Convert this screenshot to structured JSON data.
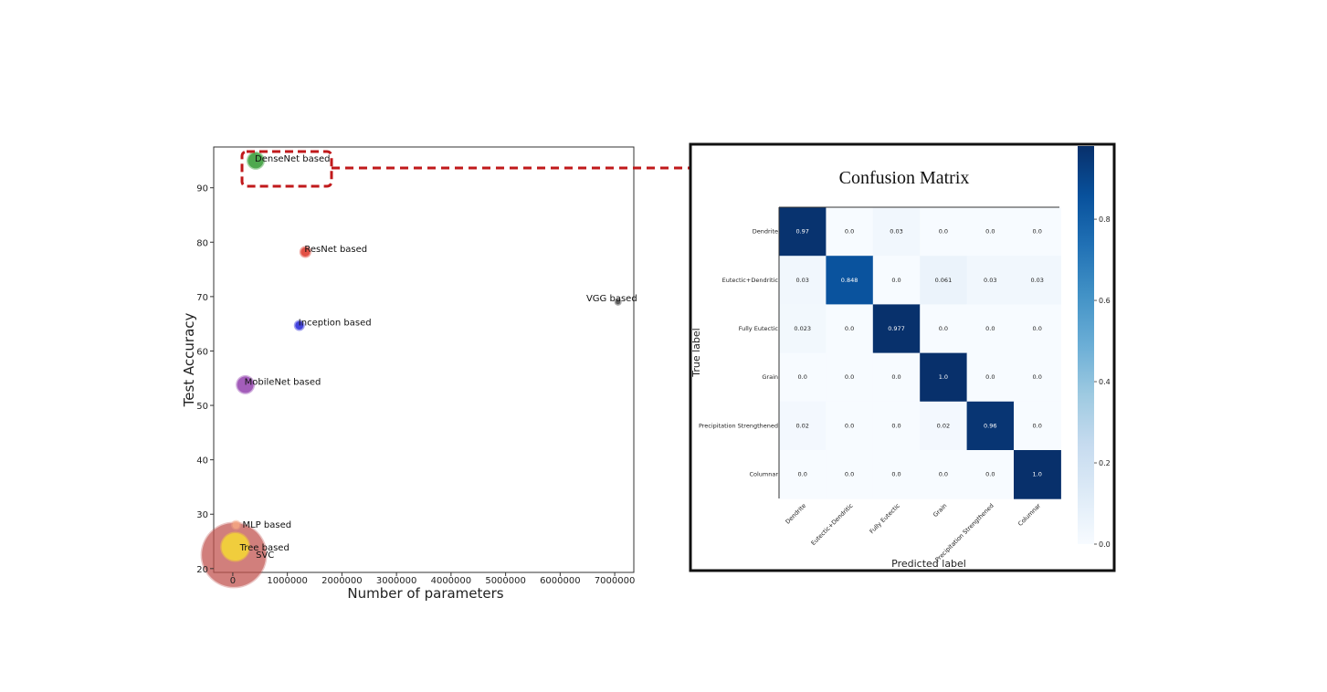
{
  "chart_data": [
    {
      "type": "scatter",
      "xlabel": "Number of parameters",
      "ylabel": "Test Accuracy",
      "xlim": [
        -350000,
        7350000
      ],
      "ylim": [
        19.3,
        97.5
      ],
      "x_ticks": [
        0,
        1000000,
        2000000,
        3000000,
        4000000,
        5000000,
        6000000,
        7000000
      ],
      "x_tick_labels": [
        "0",
        "1000000",
        "2000000",
        "3000000",
        "4000000",
        "5000000",
        "6000000",
        "7000000"
      ],
      "y_ticks": [
        20,
        30,
        40,
        50,
        60,
        70,
        80,
        90
      ],
      "y_tick_labels": [
        "20",
        "30",
        "40",
        "50",
        "60",
        "70",
        "80",
        "90"
      ],
      "grid": false,
      "points": [
        {
          "label": "SVC",
          "x": 20000,
          "y": 22.5,
          "size": 70,
          "color": "#c0504d",
          "opacity": 0.6
        },
        {
          "label": "MLP based",
          "x": 60000,
          "y": 28,
          "size": 8,
          "color": "#f4a582",
          "opacity": 0.8
        },
        {
          "label": "Tree based",
          "x": 45000,
          "y": 24,
          "size": 30,
          "color": "#f2d13a",
          "opacity": 0.9
        },
        {
          "label": "MobileNet based",
          "x": 230000,
          "y": 53.8,
          "size": 18,
          "color": "#9b4fb4",
          "opacity": 0.85
        },
        {
          "label": "Inception based",
          "x": 1220000,
          "y": 64.7,
          "size": 9,
          "color": "#3a3adb",
          "opacity": 0.9
        },
        {
          "label": "ResNet based",
          "x": 1330000,
          "y": 78.2,
          "size": 10,
          "color": "#e0473b",
          "opacity": 0.9
        },
        {
          "label": "DenseNet based",
          "x": 420000,
          "y": 95,
          "size": 17,
          "color": "#3fa03f",
          "opacity": 0.85
        },
        {
          "label": "VGG based",
          "x": 7060000,
          "y": 69,
          "size": 5,
          "color": "#555555",
          "opacity": 0.9
        }
      ],
      "highlight": "DenseNet based"
    },
    {
      "type": "heatmap",
      "title": "Confusion Matrix",
      "xlabel": "Predicted label",
      "ylabel": "True label",
      "classes": [
        "Dendrite",
        "Eutectic+Dendritic",
        "Fully Eutectic",
        "Grain",
        "Precipitation Strengthened",
        "Columnar"
      ],
      "matrix": [
        [
          0.97,
          0.0,
          0.03,
          0.0,
          0.0,
          0.0
        ],
        [
          0.03,
          0.848,
          0.0,
          0.061,
          0.03,
          0.03
        ],
        [
          0.023,
          0.0,
          0.977,
          0.0,
          0.0,
          0.0
        ],
        [
          0.0,
          0.0,
          0.0,
          1.0,
          0.0,
          0.0
        ],
        [
          0.02,
          0.0,
          0.0,
          0.02,
          0.96,
          0.0
        ],
        [
          0.0,
          0.0,
          0.0,
          0.0,
          0.0,
          1.0
        ]
      ],
      "cell_labels": [
        [
          "0.97",
          "0.0",
          "0.03",
          "0.0",
          "0.0",
          "0.0"
        ],
        [
          "0.03",
          "0.848",
          "0.0",
          "0.061",
          "0.03",
          "0.03"
        ],
        [
          "0.023",
          "0.0",
          "0.977",
          "0.0",
          "0.0",
          "0.0"
        ],
        [
          "0.0",
          "0.0",
          "0.0",
          "1.0",
          "0.0",
          "0.0"
        ],
        [
          "0.02",
          "0.0",
          "0.0",
          "0.02",
          "0.96",
          "0.0"
        ],
        [
          "0.0",
          "0.0",
          "0.0",
          "0.0",
          "0.0",
          "1.0"
        ]
      ],
      "colorbar": {
        "min": 0,
        "max": 0.98,
        "ticks": [
          0.0,
          0.2,
          0.4,
          0.6,
          0.8
        ],
        "tick_labels": [
          "0.0",
          "0.2",
          "0.4",
          "0.6",
          "0.8"
        ],
        "colormap": "Blues"
      }
    }
  ],
  "colors": {
    "highlight_box": "#c0191b"
  }
}
